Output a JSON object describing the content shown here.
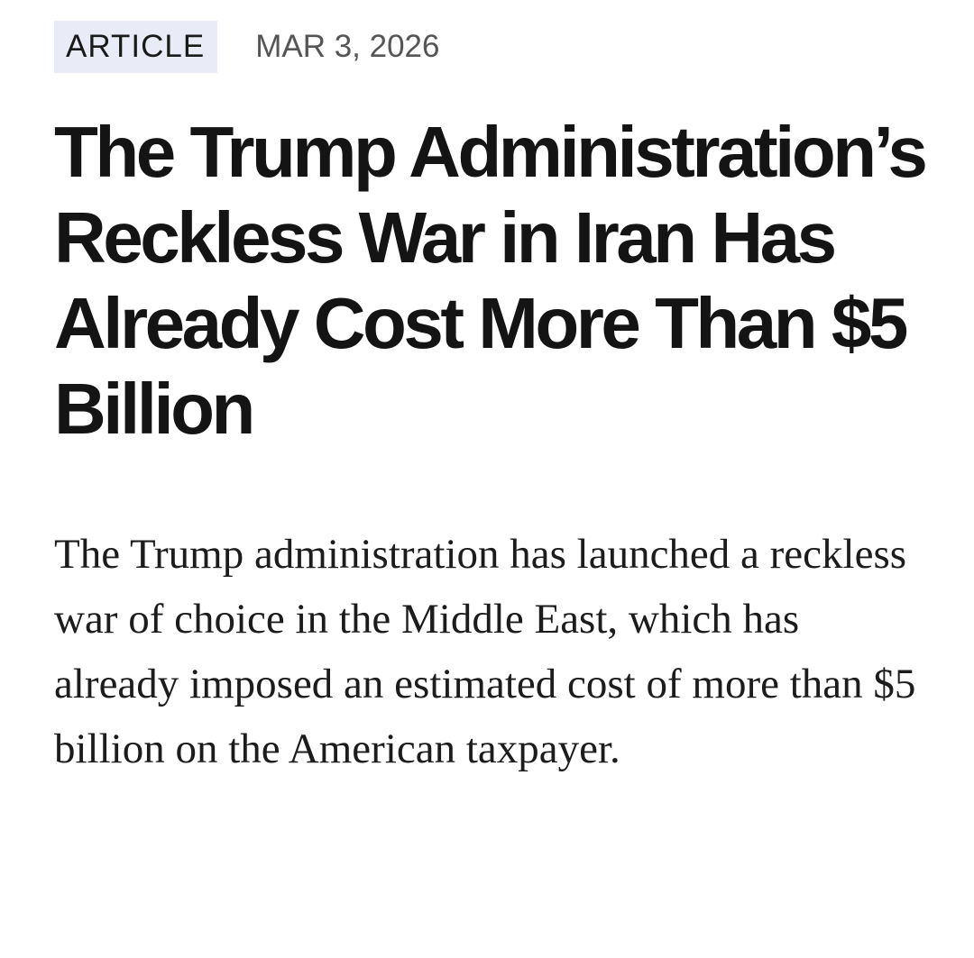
{
  "article": {
    "category": "ARTICLE",
    "date": "MAR 3, 2026",
    "title": "The Trump Administration’s Reckless War in Iran Has Already Cost More Than $5 Billion",
    "dek": "The Trump administration has launched a reckless war of choice in the Middle East, which has already imposed an estimated cost of more than $5 billion on the American taxpayer."
  }
}
